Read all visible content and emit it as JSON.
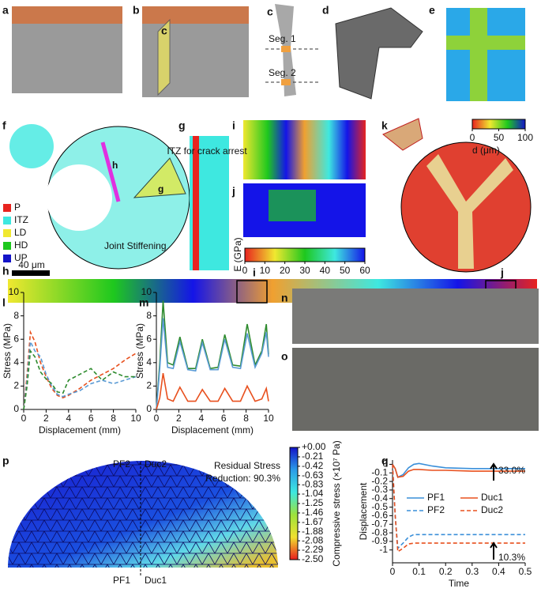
{
  "panels": [
    "a",
    "b",
    "c",
    "d",
    "e",
    "f",
    "g",
    "i",
    "j",
    "k",
    "h",
    "l",
    "m",
    "n",
    "o",
    "p",
    "q"
  ],
  "b_marker": "c",
  "c_labels": [
    "Seg. 1",
    "Seg. 2"
  ],
  "f_legend": [
    {
      "label": "P",
      "color": "#e8231f"
    },
    {
      "label": "ITZ",
      "color": "#3ee8e0"
    },
    {
      "label": "LD",
      "color": "#f0e830"
    },
    {
      "label": "HD",
      "color": "#1ec81e"
    },
    {
      "label": "UP",
      "color": "#1414c8"
    }
  ],
  "f_labels": [
    "h",
    "g",
    "Joint Stiffening"
  ],
  "g_label": "ITZ for crack arrest",
  "h_scale": "40 μm",
  "h_marks": [
    "i",
    "j"
  ],
  "p_labels": [
    "PF2",
    "Duc2",
    "PF1",
    "Duc1"
  ],
  "p_title": [
    "Residual Stress",
    "Reduction: 90.3%"
  ],
  "chart_data": [
    {
      "type": "line",
      "xlabel": "Displacement (mm)",
      "ylabel": "Stress (MPa)",
      "xlim": [
        0,
        10
      ],
      "ylim": [
        0,
        10
      ],
      "xticks": [
        0,
        2,
        4,
        6,
        8,
        10
      ],
      "yticks": [
        0,
        2,
        4,
        6,
        8,
        10
      ],
      "x": [
        0,
        0.3,
        0.6,
        1,
        1.5,
        2,
        2.5,
        3,
        3.5,
        4,
        5,
        6,
        7,
        8,
        9,
        10
      ],
      "series": [
        {
          "color": "#e8501e",
          "dash": true,
          "values": [
            0,
            3,
            6.6,
            5.8,
            4,
            2.8,
            1.8,
            1.2,
            1.0,
            1.2,
            1.8,
            2.5,
            3,
            3.5,
            4.2,
            4.8
          ]
        },
        {
          "color": "#5b9bd5",
          "dash": true,
          "values": [
            0,
            2.5,
            5.8,
            5.0,
            4.5,
            3,
            2,
            1.3,
            1.1,
            1.3,
            1.6,
            2.2,
            2.5,
            2.2,
            2.5,
            2.8
          ]
        },
        {
          "color": "#2e8b2e",
          "dash": true,
          "values": [
            0,
            2,
            5,
            4.5,
            3.2,
            2.6,
            2.2,
            1.5,
            1.4,
            2.5,
            3,
            3.5,
            2.5,
            3.2,
            2.8,
            2.8
          ]
        }
      ]
    },
    {
      "type": "line",
      "xlabel": "Displacement (mm)",
      "ylabel": "Stress (MPa)",
      "xlim": [
        0,
        10
      ],
      "ylim": [
        0,
        10
      ],
      "xticks": [
        0,
        2,
        4,
        6,
        8,
        10
      ],
      "yticks": [
        0,
        2,
        4,
        6,
        8,
        10
      ],
      "x": [
        0,
        0.3,
        0.6,
        1,
        1.5,
        2.1,
        2.8,
        3.5,
        4.1,
        4.8,
        5.5,
        6.1,
        6.8,
        7.5,
        8.1,
        8.8,
        9.4,
        9.8,
        10
      ],
      "series": [
        {
          "color": "#2e8b2e",
          "dash": false,
          "values": [
            0,
            4,
            9.3,
            4,
            3.8,
            6.2,
            3.5,
            3.5,
            6,
            3.5,
            3.6,
            6.4,
            3.8,
            3.7,
            7.3,
            3.8,
            5,
            7.3,
            4.7
          ]
        },
        {
          "color": "#5b9bd5",
          "dash": false,
          "values": [
            0,
            3.5,
            7.8,
            3.6,
            3.5,
            5.8,
            3.4,
            3.3,
            5.7,
            3.4,
            3.4,
            6,
            3.6,
            3.5,
            6.5,
            3.6,
            4.8,
            6.6,
            4.5
          ]
        },
        {
          "color": "#e8501e",
          "dash": false,
          "values": [
            0,
            1,
            3.1,
            0.9,
            0.7,
            1.9,
            0.7,
            0.7,
            1.7,
            0.7,
            0.7,
            1.8,
            0.7,
            0.7,
            2,
            0.7,
            0.9,
            1.8,
            0.7
          ]
        }
      ]
    },
    {
      "type": "line",
      "xlabel": "Time",
      "ylabel": "Displacement",
      "xlim": [
        0,
        0.5
      ],
      "ylim": [
        -1.15,
        0.05
      ],
      "xticks": [
        0,
        0.1,
        0.2,
        0.3,
        0.4,
        0.5
      ],
      "yticks": [
        -1,
        -0.9,
        -0.8,
        -0.7,
        -0.6,
        -0.5,
        -0.4,
        -0.3,
        -0.2,
        -0.1,
        0
      ],
      "x": [
        0,
        0.01,
        0.02,
        0.04,
        0.06,
        0.08,
        0.1,
        0.15,
        0.2,
        0.3,
        0.4,
        0.5
      ],
      "series": [
        {
          "name": "PF1",
          "color": "#3a8fd9",
          "dash": false,
          "values": [
            0,
            -0.05,
            -0.15,
            -0.12,
            -0.04,
            0,
            0.01,
            -0.02,
            -0.04,
            -0.05,
            -0.05,
            -0.05
          ]
        },
        {
          "name": "Duc1",
          "color": "#e8501e",
          "dash": false,
          "values": [
            0,
            -0.05,
            -0.15,
            -0.14,
            -0.08,
            -0.06,
            -0.06,
            -0.07,
            -0.07,
            -0.08,
            -0.08,
            -0.08
          ]
        },
        {
          "name": "PF2",
          "color": "#3a8fd9",
          "dash": true,
          "values": [
            0,
            -0.6,
            -0.98,
            -0.92,
            -0.85,
            -0.82,
            -0.82,
            -0.82,
            -0.82,
            -0.82,
            -0.82,
            -0.82
          ]
        },
        {
          "name": "Duc2",
          "color": "#e8501e",
          "dash": true,
          "values": [
            0,
            -0.6,
            -1.02,
            -0.98,
            -0.93,
            -0.92,
            -0.92,
            -0.92,
            -0.92,
            -0.92,
            -0.92,
            -0.92
          ]
        }
      ],
      "annotations": [
        "33.0%",
        "10.3%"
      ]
    },
    {
      "type": "colorbar",
      "label": "E (GPa)",
      "xlim": [
        0,
        60
      ],
      "xticks": [
        0,
        10,
        20,
        30,
        40,
        50,
        60
      ],
      "colors": [
        "#e8231f",
        "#f0e830",
        "#1ec81e",
        "#3ee8e0",
        "#1414e8"
      ]
    },
    {
      "type": "colorbar",
      "label": "d (μm)",
      "xlim": [
        0,
        100
      ],
      "xticks": [
        0,
        50,
        100
      ],
      "colors": [
        "#e8231f",
        "#f0e830",
        "#1ec81e",
        "#1414c8"
      ]
    },
    {
      "type": "colorbar",
      "label": "Compressive stress (×10⁷ Pa)",
      "ylim": [
        -2.5,
        0
      ],
      "yticks": [
        {
          "value": 0,
          "label": "+0.00"
        },
        -0.21,
        -0.42,
        -0.63,
        -0.83,
        -1.04,
        -1.25,
        -1.46,
        -1.67,
        -1.88,
        -2.08,
        -2.29,
        {
          "value": -2.5,
          "label": "-2.50"
        }
      ],
      "colors": [
        "#e81e1e",
        "#f0e030",
        "#9de23c",
        "#3ee8e0",
        "#2a9be8",
        "#1414c8"
      ]
    }
  ]
}
